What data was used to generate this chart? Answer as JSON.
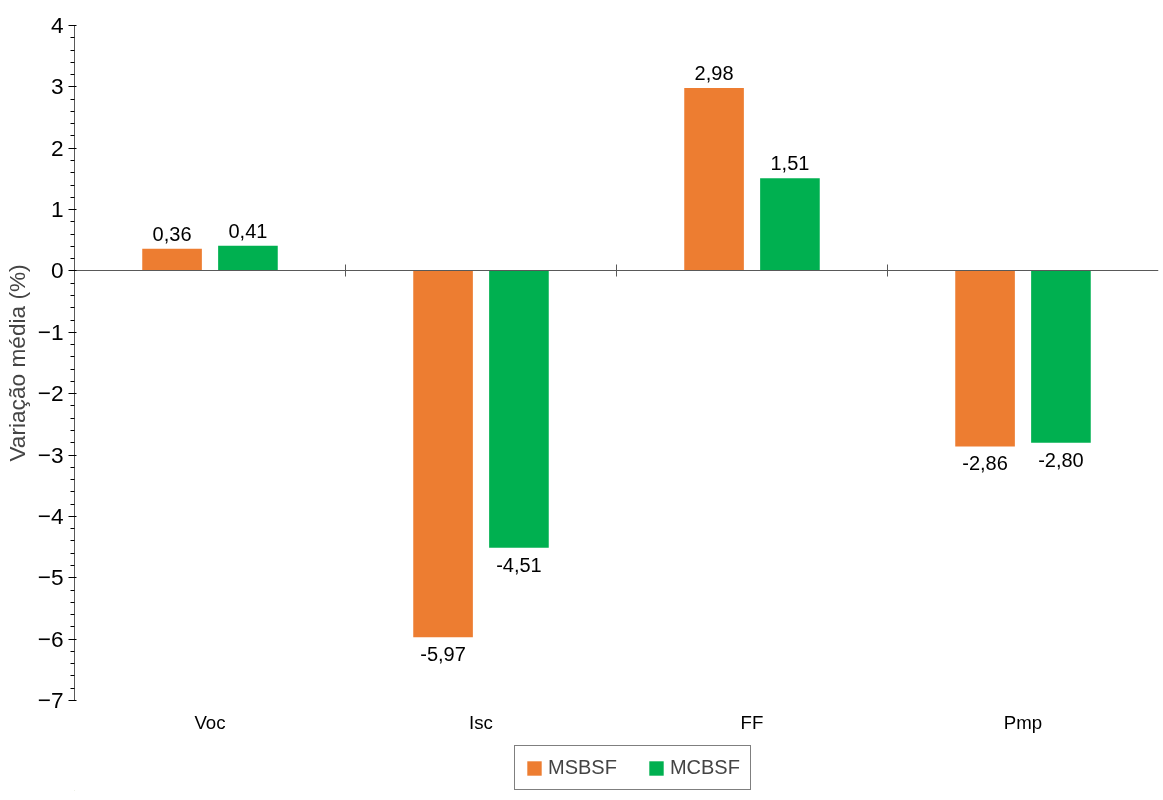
{
  "chart_data": {
    "type": "bar",
    "ylabel": "Variação média (%)",
    "categories": [
      "Voc",
      "Isc",
      "FF",
      "Pmp"
    ],
    "series": [
      {
        "name": "MSBSF",
        "color": "#ed7d31",
        "values": [
          0.36,
          -5.97,
          2.98,
          -2.86
        ],
        "value_labels": [
          "0,36",
          "-5,97",
          "2,98",
          "-2,86"
        ]
      },
      {
        "name": "MCBSF",
        "color": "#00b050",
        "values": [
          0.41,
          -4.51,
          1.51,
          -2.8
        ],
        "value_labels": [
          "0,41",
          "-4,51",
          "1,51",
          "-2,80"
        ]
      }
    ],
    "ylim": [
      -7,
      4
    ],
    "yticks": [
      -7,
      -6,
      -5,
      -4,
      -3,
      -2,
      -1,
      0,
      1,
      2,
      3,
      4
    ],
    "legend": "bottom"
  }
}
